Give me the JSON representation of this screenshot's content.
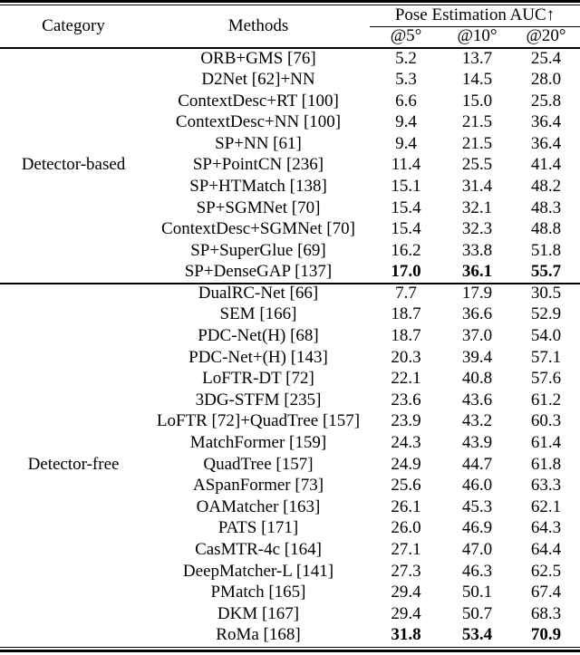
{
  "colors": {
    "background": "#ffffff",
    "text": "#000000",
    "rules": "#000000"
  },
  "table": {
    "headers": {
      "category": "Category",
      "methods": "Methods",
      "group": "Pose Estimation AUC↑",
      "sub": [
        "@5°",
        "@10°",
        "@20°"
      ]
    },
    "sections": [
      {
        "category": "Detector-based",
        "rows": [
          {
            "method": "ORB+GMS [76]",
            "values": [
              "5.2",
              "13.7",
              "25.4"
            ],
            "bold": false
          },
          {
            "method": "D2Net [62]+NN",
            "values": [
              "5.3",
              "14.5",
              "28.0"
            ],
            "bold": false
          },
          {
            "method": "ContextDesc+RT [100]",
            "values": [
              "6.6",
              "15.0",
              "25.8"
            ],
            "bold": false
          },
          {
            "method": "ContextDesc+NN [100]",
            "values": [
              "9.4",
              "21.5",
              "36.4"
            ],
            "bold": false
          },
          {
            "method": "SP+NN [61]",
            "values": [
              "9.4",
              "21.5",
              "36.4"
            ],
            "bold": false
          },
          {
            "method": "SP+PointCN [236]",
            "values": [
              "11.4",
              "25.5",
              "41.4"
            ],
            "bold": false
          },
          {
            "method": "SP+HTMatch [138]",
            "values": [
              "15.1",
              "31.4",
              "48.2"
            ],
            "bold": false
          },
          {
            "method": "SP+SGMNet [70]",
            "values": [
              "15.4",
              "32.1",
              "48.3"
            ],
            "bold": false
          },
          {
            "method": "ContextDesc+SGMNet [70]",
            "values": [
              "15.4",
              "32.3",
              "48.8"
            ],
            "bold": false
          },
          {
            "method": "SP+SuperGlue [69]",
            "values": [
              "16.2",
              "33.8",
              "51.8"
            ],
            "bold": false
          },
          {
            "method": "SP+DenseGAP [137]",
            "values": [
              "17.0",
              "36.1",
              "55.7"
            ],
            "bold": true
          }
        ]
      },
      {
        "category": "Detector-free",
        "rows": [
          {
            "method": "DualRC-Net [66]",
            "values": [
              "7.7",
              "17.9",
              "30.5"
            ],
            "bold": false
          },
          {
            "method": "SEM [166]",
            "values": [
              "18.7",
              "36.6",
              "52.9"
            ],
            "bold": false
          },
          {
            "method": "PDC-Net(H) [68]",
            "values": [
              "18.7",
              "37.0",
              "54.0"
            ],
            "bold": false
          },
          {
            "method": "PDC-Net+(H) [143]",
            "values": [
              "20.3",
              "39.4",
              "57.1"
            ],
            "bold": false
          },
          {
            "method": "LoFTR-DT [72]",
            "values": [
              "22.1",
              "40.8",
              "57.6"
            ],
            "bold": false
          },
          {
            "method": "3DG-STFM [235]",
            "values": [
              "23.6",
              "43.6",
              "61.2"
            ],
            "bold": false
          },
          {
            "method": "LoFTR [72]+QuadTree [157]",
            "values": [
              "23.9",
              "43.2",
              "60.3"
            ],
            "bold": false
          },
          {
            "method": "MatchFormer [159]",
            "values": [
              "24.3",
              "43.9",
              "61.4"
            ],
            "bold": false
          },
          {
            "method": "QuadTree [157]",
            "values": [
              "24.9",
              "44.7",
              "61.8"
            ],
            "bold": false
          },
          {
            "method": "ASpanFormer [73]",
            "values": [
              "25.6",
              "46.0",
              "63.3"
            ],
            "bold": false
          },
          {
            "method": "OAMatcher [163]",
            "values": [
              "26.1",
              "45.3",
              "62.1"
            ],
            "bold": false
          },
          {
            "method": "PATS [171]",
            "values": [
              "26.0",
              "46.9",
              "64.3"
            ],
            "bold": false
          },
          {
            "method": "CasMTR-4c [164]",
            "values": [
              "27.1",
              "47.0",
              "64.4"
            ],
            "bold": false
          },
          {
            "method": "DeepMatcher-L [141]",
            "values": [
              "27.3",
              "46.3",
              "62.5"
            ],
            "bold": false
          },
          {
            "method": "PMatch [165]",
            "values": [
              "29.4",
              "50.1",
              "67.4"
            ],
            "bold": false
          },
          {
            "method": "DKM [167]",
            "values": [
              "29.4",
              "50.7",
              "68.3"
            ],
            "bold": false
          },
          {
            "method": "RoMa [168]",
            "values": [
              "31.8",
              "53.4",
              "70.9"
            ],
            "bold": true
          }
        ]
      }
    ]
  }
}
